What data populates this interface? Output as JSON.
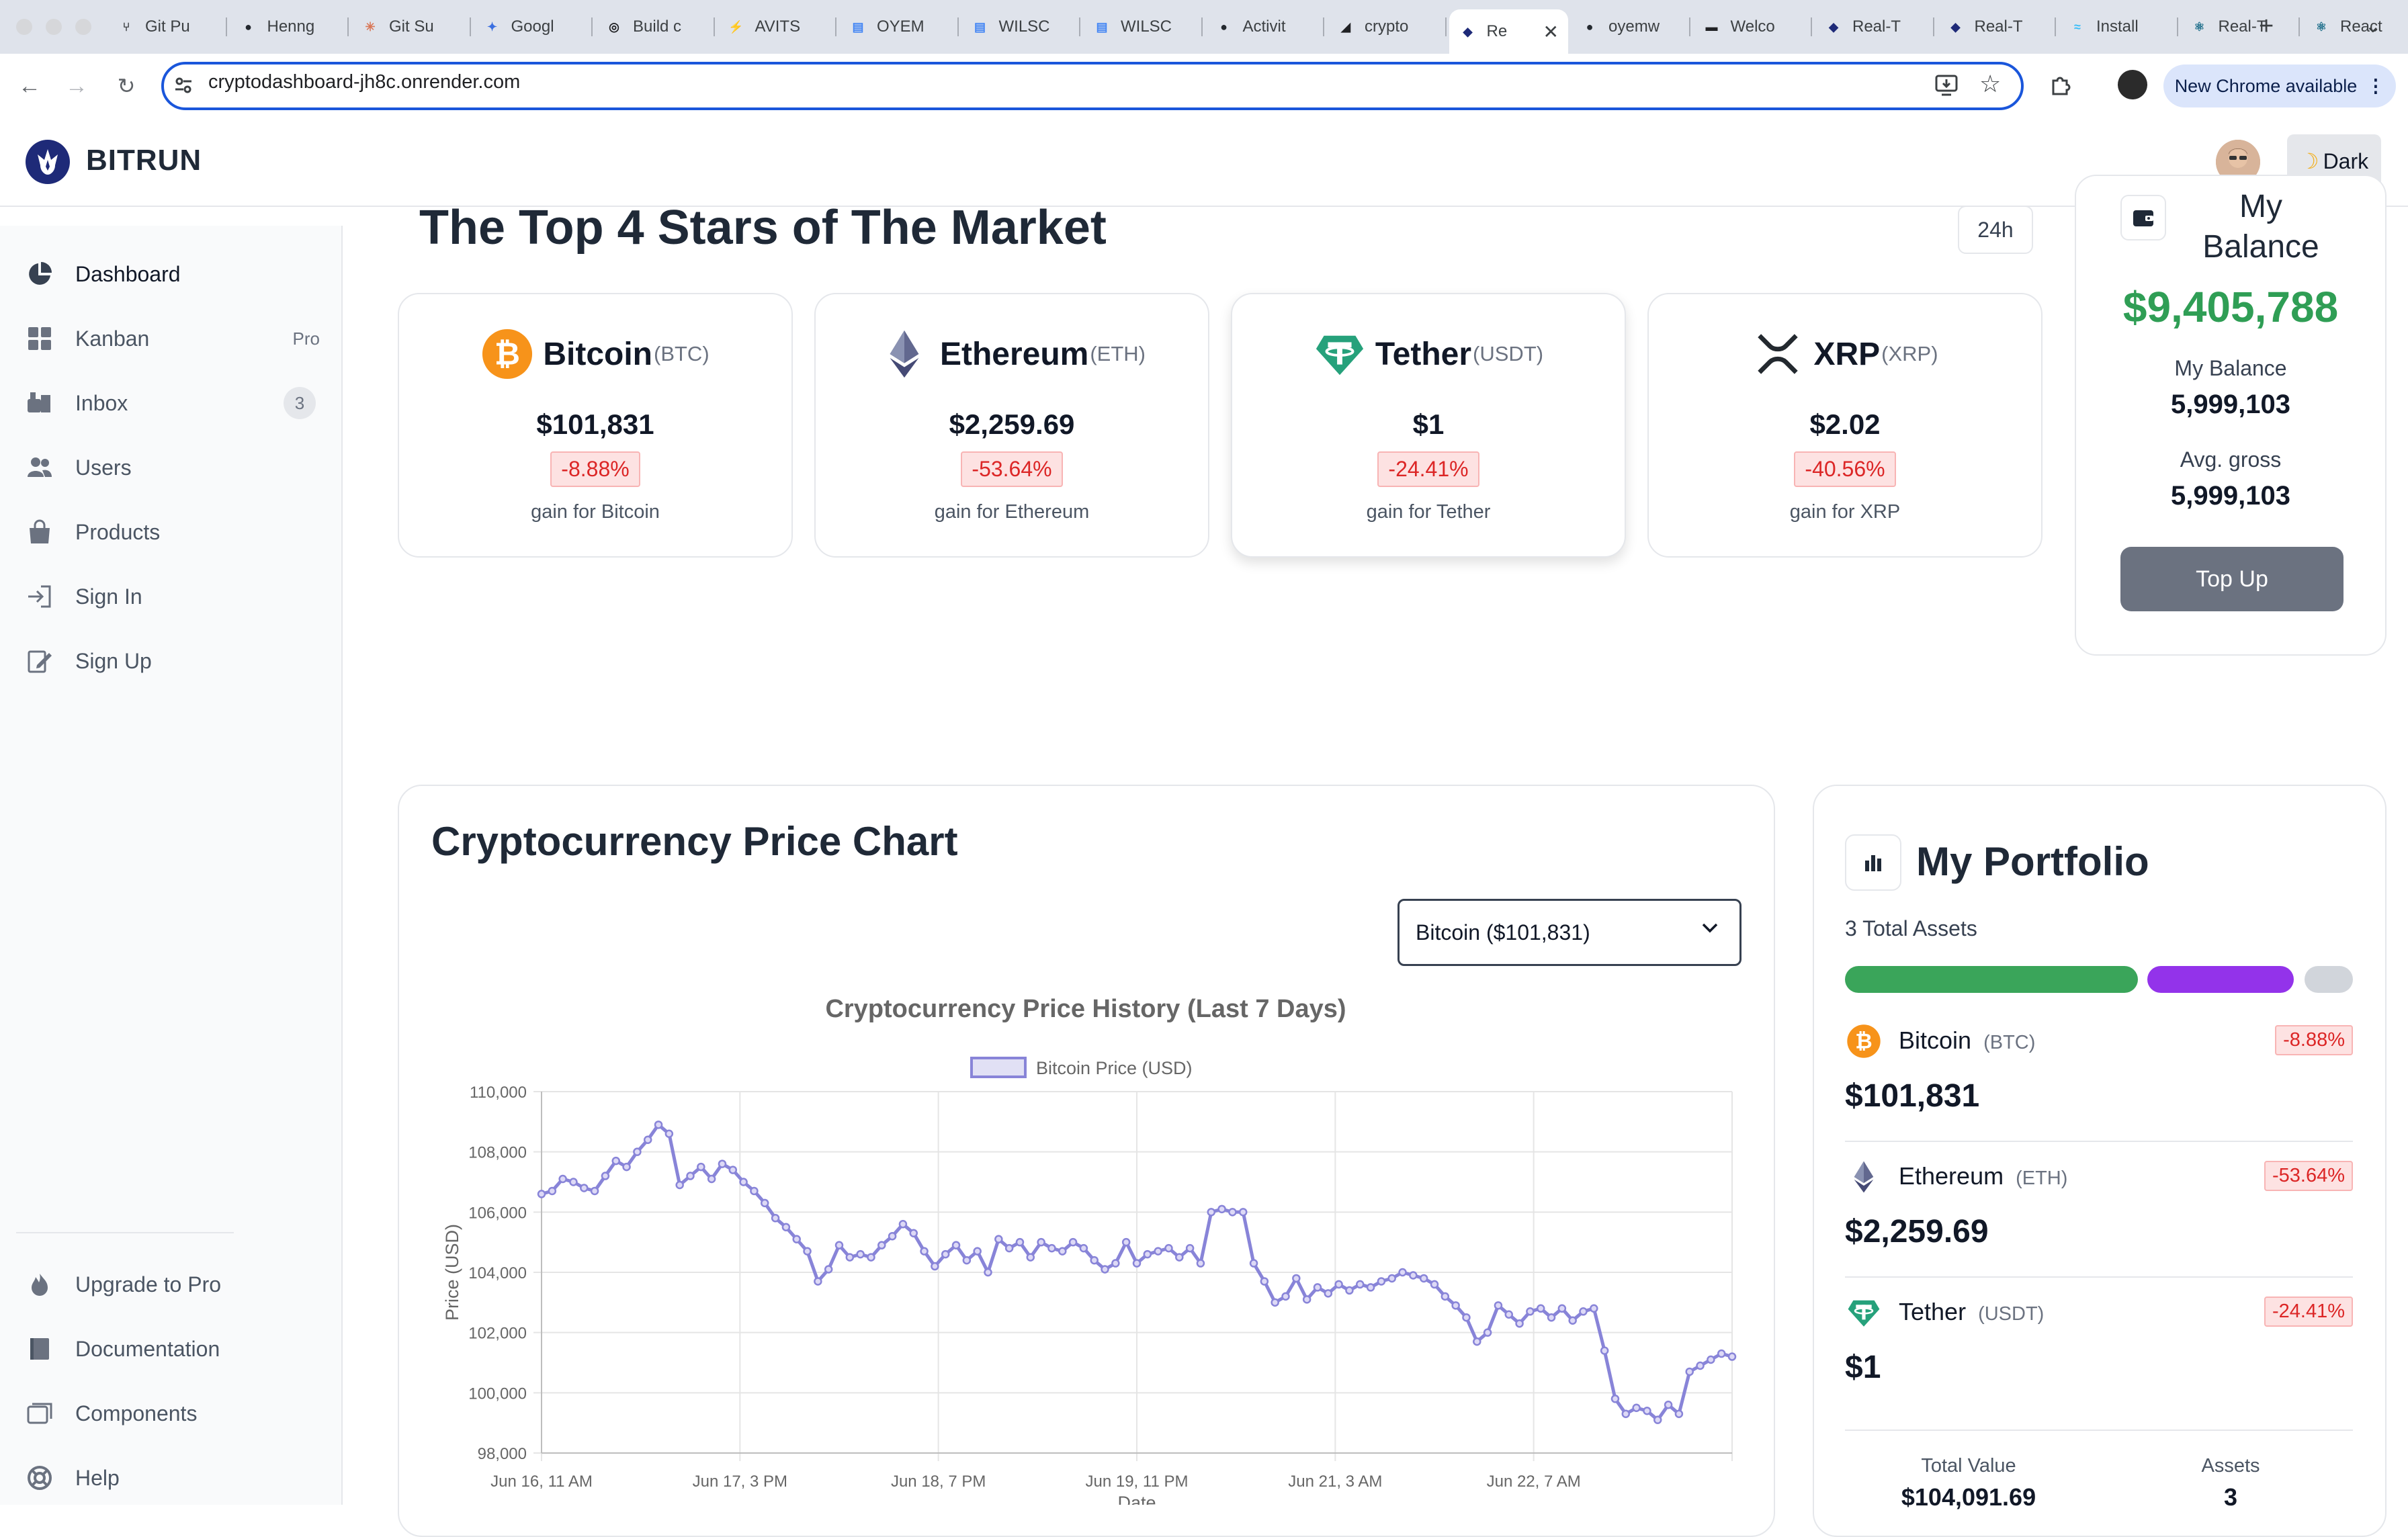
{
  "browser": {
    "tabs": [
      {
        "label": "Git Pu",
        "icon": "git-icon"
      },
      {
        "label": "Henng",
        "icon": "github-icon"
      },
      {
        "label": "Git Su",
        "icon": "claude-icon"
      },
      {
        "label": "Googl",
        "icon": "gemini-icon"
      },
      {
        "label": "Build c",
        "icon": "openai-icon"
      },
      {
        "label": "AVITS",
        "icon": "avits-icon"
      },
      {
        "label": "OYEM",
        "icon": "doc-icon"
      },
      {
        "label": "WILSC",
        "icon": "doc-icon"
      },
      {
        "label": "WILSC",
        "icon": "doc-icon"
      },
      {
        "label": "Activit",
        "icon": "github-icon"
      },
      {
        "label": "crypto",
        "icon": "render-icon"
      },
      {
        "label": "Re",
        "icon": "bitrun-icon",
        "active": true
      },
      {
        "label": "oyemw",
        "icon": "github-icon"
      },
      {
        "label": "Welco",
        "icon": "terminal-icon"
      },
      {
        "label": "Real-T",
        "icon": "bitrun-icon"
      },
      {
        "label": "Real-T",
        "icon": "bitrun-icon"
      },
      {
        "label": "Install",
        "icon": "tailwind-icon"
      },
      {
        "label": "Real-T",
        "icon": "react-icon"
      },
      {
        "label": "React",
        "icon": "react-icon"
      }
    ],
    "url": "cryptodashboard-jh8c.onrender.com",
    "update_label": "New Chrome available"
  },
  "header": {
    "brand": "BITRUN",
    "theme_label": "Dark"
  },
  "sidebar": {
    "items": [
      {
        "label": "Dashboard",
        "icon": "pie-chart-icon",
        "badge": ""
      },
      {
        "label": "Kanban",
        "icon": "grid-icon",
        "badge": "Pro"
      },
      {
        "label": "Inbox",
        "icon": "inbox-icon",
        "badge": "3"
      },
      {
        "label": "Users",
        "icon": "users-icon",
        "badge": ""
      },
      {
        "label": "Products",
        "icon": "bag-icon",
        "badge": ""
      },
      {
        "label": "Sign In",
        "icon": "sign-in-icon",
        "badge": ""
      },
      {
        "label": "Sign Up",
        "icon": "sign-up-icon",
        "badge": ""
      }
    ],
    "footer": [
      {
        "label": "Upgrade to Pro",
        "icon": "fire-icon"
      },
      {
        "label": "Documentation",
        "icon": "book-icon"
      },
      {
        "label": "Components",
        "icon": "components-icon"
      },
      {
        "label": "Help",
        "icon": "help-icon"
      }
    ]
  },
  "top_stars": {
    "title": "The Top 4 Stars of The Market",
    "period": "24h",
    "coins": [
      {
        "name": "Bitcoin",
        "symbol": "(BTC)",
        "price": "$101,831",
        "change": "-8.88%",
        "caption": "gain for Bitcoin",
        "color": "#f7931a"
      },
      {
        "name": "Ethereum",
        "symbol": "(ETH)",
        "price": "$2,259.69",
        "change": "-53.64%",
        "caption": "gain for Ethereum",
        "color": "#5c5f86"
      },
      {
        "name": "Tether",
        "symbol": "(USDT)",
        "price": "$1",
        "change": "-24.41%",
        "caption": "gain for Tether",
        "color": "#26a17b"
      },
      {
        "name": "XRP",
        "symbol": "(XRP)",
        "price": "$2.02",
        "change": "-40.56%",
        "caption": "gain for XRP",
        "color": "#23292f"
      }
    ]
  },
  "balance": {
    "title": "My Balance",
    "amount": "$9,405,788",
    "my_balance_label": "My Balance",
    "my_balance_value": "5,999,103",
    "avg_gross_label": "Avg. gross",
    "avg_gross_value": "5,999,103",
    "top_up_label": "Top Up"
  },
  "price_chart": {
    "title": "Cryptocurrency Price Chart",
    "selected": "Bitcoin ($101,831)"
  },
  "chart_data": {
    "type": "line",
    "title": "Cryptocurrency Price History (Last 7 Days)",
    "xlabel": "Date",
    "ylabel": "Price (USD)",
    "ylim": [
      98000,
      110000
    ],
    "yticks": [
      "98,000",
      "100,000",
      "102,000",
      "104,000",
      "106,000",
      "108,000",
      "110,000"
    ],
    "xticks": [
      "Jun 16, 11 AM",
      "Jun 17, 3 PM",
      "Jun 18, 7 PM",
      "Jun 19, 11 PM",
      "Jun 21, 3 AM",
      "Jun 22, 7 AM"
    ],
    "grid": true,
    "legend": "top",
    "series": [
      {
        "name": "Bitcoin Price (USD)",
        "color": "#8884d8",
        "values": [
          106600,
          106700,
          107100,
          107000,
          106800,
          106700,
          107200,
          107700,
          107500,
          108000,
          108400,
          108900,
          108600,
          106900,
          107200,
          107500,
          107100,
          107600,
          107400,
          107000,
          106700,
          106300,
          105800,
          105500,
          105100,
          104700,
          103700,
          104100,
          104900,
          104500,
          104600,
          104500,
          104900,
          105200,
          105600,
          105300,
          104700,
          104200,
          104600,
          104900,
          104400,
          104700,
          104000,
          105100,
          104800,
          105000,
          104500,
          105000,
          104800,
          104700,
          105000,
          104800,
          104400,
          104100,
          104300,
          105000,
          104300,
          104600,
          104700,
          104800,
          104500,
          104800,
          104300,
          106000,
          106100,
          106000,
          106000,
          104300,
          103700,
          103000,
          103200,
          103800,
          103100,
          103500,
          103300,
          103600,
          103400,
          103600,
          103500,
          103700,
          103800,
          104000,
          103900,
          103800,
          103600,
          103200,
          102900,
          102500,
          101700,
          102000,
          102900,
          102600,
          102300,
          102700,
          102800,
          102500,
          102800,
          102400,
          102700,
          102800,
          101400,
          99800,
          99300,
          99500,
          99400,
          99100,
          99600,
          99300,
          100700,
          100900,
          101100,
          101300,
          101200
        ]
      }
    ]
  },
  "portfolio": {
    "title": "My Portfolio",
    "subtitle": "3 Total Assets",
    "bar_colors": [
      "#3aa55a",
      "#9333ea",
      "#d1d5db"
    ],
    "assets": [
      {
        "name": "Bitcoin",
        "symbol": "(BTC)",
        "change": "-8.88%",
        "price": "$101,831"
      },
      {
        "name": "Ethereum",
        "symbol": "(ETH)",
        "change": "-53.64%",
        "price": "$2,259.69"
      },
      {
        "name": "Tether",
        "symbol": "(USDT)",
        "change": "-24.41%",
        "price": "$1"
      }
    ],
    "total_value_label": "Total Value",
    "total_value": "$104,091.69",
    "assets_label": "Assets",
    "assets_count": "3"
  }
}
